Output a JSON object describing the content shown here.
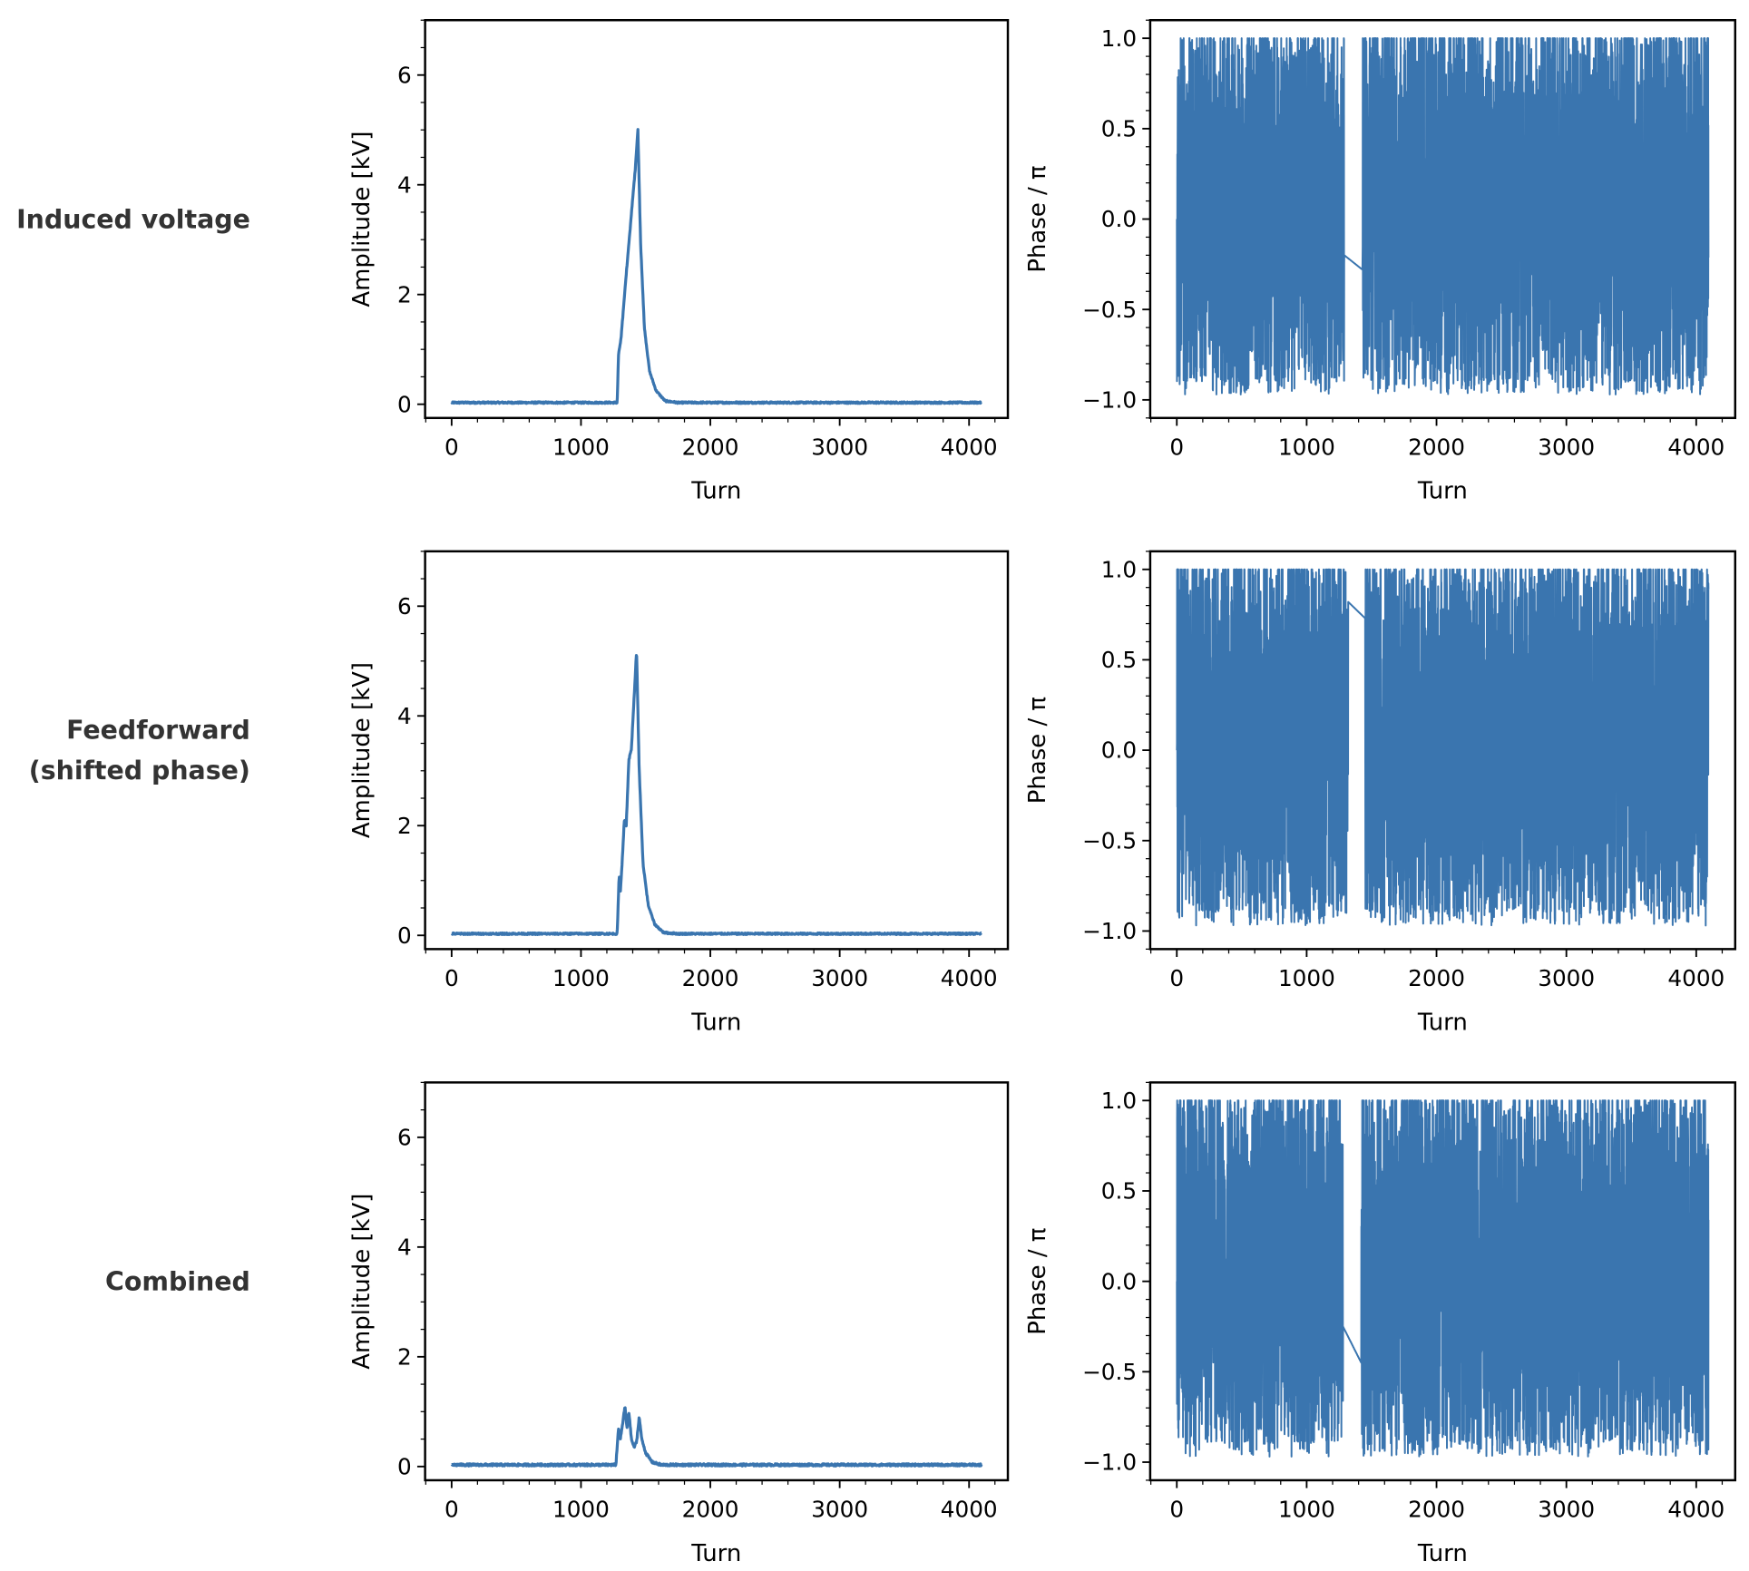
{
  "colors": {
    "line": "#3a75af",
    "axes": "#000000",
    "row_label": "#333333"
  },
  "chart_data": {
    "type": "line",
    "layout": "3 rows x 2 columns",
    "rows": [
      {
        "label_lines": [
          "Induced voltage"
        ],
        "amplitude": {
          "xlabel": "Turn",
          "ylabel": "Amplitude [kV]",
          "xlim": [
            -205,
            4300
          ],
          "ylim": [
            -0.25,
            7
          ],
          "xticks": [
            0,
            1000,
            2000,
            3000,
            4000
          ],
          "xtick_labels": [
            "0",
            "1000",
            "2000",
            "3000",
            "4000"
          ],
          "yticks": [
            0,
            2,
            4,
            6
          ],
          "ytick_labels": [
            "0",
            "2",
            "4",
            "6"
          ],
          "baseline": 0.03,
          "noise": 0.015,
          "x": [
            0,
            1280,
            1290,
            1310,
            1340,
            1380,
            1420,
            1440,
            1460,
            1490,
            1530,
            1580,
            1650,
            1750,
            4095
          ],
          "y": [
            0.03,
            0.03,
            0.9,
            1.2,
            2.1,
            3.2,
            4.3,
            5.0,
            3.0,
            1.4,
            0.6,
            0.25,
            0.06,
            0.03,
            0.03
          ]
        },
        "phase": {
          "xlabel": "Turn",
          "ylabel": "Phase / π",
          "xlim": [
            -205,
            4300
          ],
          "ylim": [
            -1.1,
            1.1
          ],
          "xticks": [
            0,
            1000,
            2000,
            3000,
            4000
          ],
          "xtick_labels": [
            "0",
            "1000",
            "2000",
            "3000",
            "4000"
          ],
          "yticks": [
            -1.0,
            -0.5,
            0.0,
            0.5,
            1.0
          ],
          "ytick_labels": [
            "−1.0",
            "−0.5",
            "0.0",
            "0.5",
            "1.0"
          ],
          "oscillating_range": [
            -1,
            1
          ],
          "quiet_interval": [
            1290,
            1430
          ],
          "quiet_values": [
            -0.2,
            -0.28
          ]
        }
      },
      {
        "label_lines": [
          "Feedforward",
          "(shifted phase)"
        ],
        "amplitude": {
          "xlabel": "Turn",
          "ylabel": "Amplitude [kV]",
          "xlim": [
            -205,
            4300
          ],
          "ylim": [
            -0.25,
            7
          ],
          "xticks": [
            0,
            1000,
            2000,
            3000,
            4000
          ],
          "xtick_labels": [
            "0",
            "1000",
            "2000",
            "3000",
            "4000"
          ],
          "yticks": [
            0,
            2,
            4,
            6
          ],
          "ytick_labels": [
            "0",
            "2",
            "4",
            "6"
          ],
          "baseline": 0.03,
          "noise": 0.015,
          "x": [
            0,
            1280,
            1295,
            1305,
            1315,
            1335,
            1350,
            1370,
            1390,
            1410,
            1430,
            1450,
            1480,
            1520,
            1570,
            1640,
            1750,
            4095
          ],
          "y": [
            0.03,
            0.03,
            1.1,
            0.8,
            1.2,
            2.1,
            2.0,
            3.2,
            3.4,
            4.3,
            5.2,
            3.0,
            1.3,
            0.55,
            0.2,
            0.05,
            0.03,
            0.03
          ]
        },
        "phase": {
          "xlabel": "Turn",
          "ylabel": "Phase / π",
          "xlim": [
            -205,
            4300
          ],
          "ylim": [
            -1.1,
            1.1
          ],
          "xticks": [
            0,
            1000,
            2000,
            3000,
            4000
          ],
          "xtick_labels": [
            "0",
            "1000",
            "2000",
            "3000",
            "4000"
          ],
          "yticks": [
            -1.0,
            -0.5,
            0.0,
            0.5,
            1.0
          ],
          "ytick_labels": [
            "−1.0",
            "−0.5",
            "0.0",
            "0.5",
            "1.0"
          ],
          "oscillating_range": [
            -1,
            1
          ],
          "quiet_interval": [
            1320,
            1450
          ],
          "quiet_values": [
            0.82,
            0.73
          ]
        }
      },
      {
        "label_lines": [
          "Combined"
        ],
        "amplitude": {
          "xlabel": "Turn",
          "ylabel": "Amplitude [kV]",
          "xlim": [
            -205,
            4300
          ],
          "ylim": [
            -0.25,
            7
          ],
          "xticks": [
            0,
            1000,
            2000,
            3000,
            4000
          ],
          "xtick_labels": [
            "0",
            "1000",
            "2000",
            "3000",
            "4000"
          ],
          "yticks": [
            0,
            2,
            4,
            6
          ],
          "ytick_labels": [
            "0",
            "2",
            "4",
            "6"
          ],
          "baseline": 0.03,
          "noise": 0.02,
          "x": [
            0,
            1270,
            1290,
            1305,
            1320,
            1340,
            1355,
            1370,
            1390,
            1410,
            1430,
            1450,
            1470,
            1500,
            1550,
            1620,
            4095
          ],
          "y": [
            0.03,
            0.03,
            0.7,
            0.5,
            0.75,
            1.1,
            0.7,
            1.0,
            0.5,
            0.35,
            0.45,
            0.9,
            0.5,
            0.25,
            0.08,
            0.03,
            0.03
          ]
        },
        "phase": {
          "xlabel": "Turn",
          "ylabel": "Phase / π",
          "xlim": [
            -205,
            4300
          ],
          "ylim": [
            -1.1,
            1.1
          ],
          "xticks": [
            0,
            1000,
            2000,
            3000,
            4000
          ],
          "xtick_labels": [
            "0",
            "1000",
            "2000",
            "3000",
            "4000"
          ],
          "yticks": [
            -1.0,
            -0.5,
            0.0,
            0.5,
            1.0
          ],
          "ytick_labels": [
            "−1.0",
            "−0.5",
            "0.0",
            "0.5",
            "1.0"
          ],
          "oscillating_range": [
            -1,
            1
          ],
          "quiet_interval": [
            1280,
            1420
          ],
          "quiet_values": [
            -0.25,
            -0.45
          ]
        }
      }
    ]
  }
}
